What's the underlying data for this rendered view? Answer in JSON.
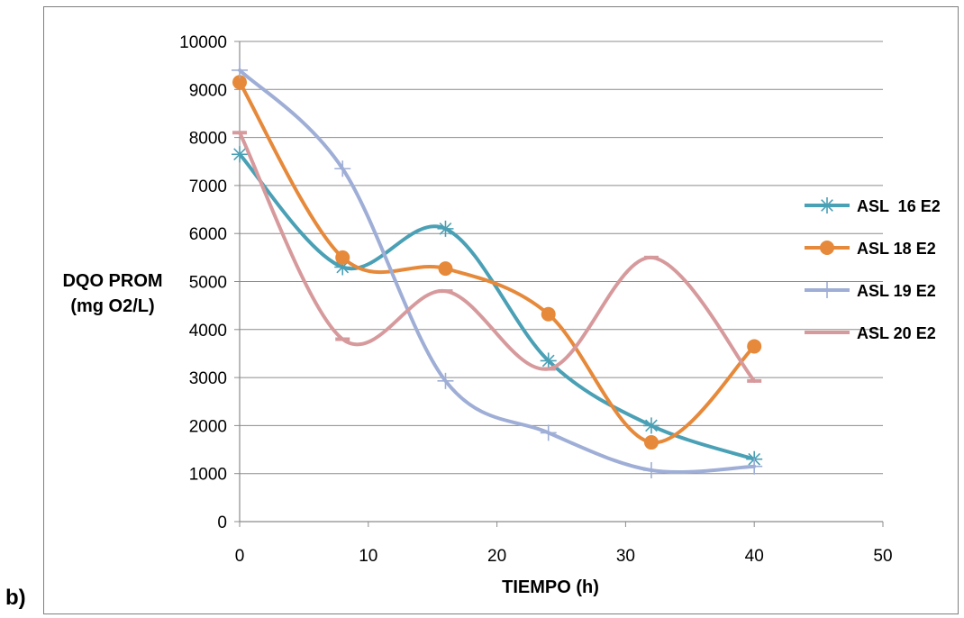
{
  "panel_label": "b)",
  "chart_data": {
    "type": "line",
    "title": "",
    "xlabel": "TIEMPO (h)",
    "ylabel": [
      "DQO PROM",
      "(mg O2/L)"
    ],
    "xlim": [
      0,
      50
    ],
    "ylim": [
      0,
      10000
    ],
    "xticks": [
      0,
      10,
      20,
      30,
      40,
      50
    ],
    "yticks": [
      0,
      1000,
      2000,
      3000,
      4000,
      5000,
      6000,
      7000,
      8000,
      9000,
      10000
    ],
    "grid": "horizontal",
    "smooth": true,
    "legend_position": "right",
    "series": [
      {
        "name": "ASL  16 E2",
        "color": "#4aa0b5",
        "marker": "asterisk",
        "x": [
          0,
          8,
          16,
          24,
          32,
          40
        ],
        "values": [
          7650,
          5300,
          6100,
          3350,
          2000,
          1300
        ]
      },
      {
        "name": "ASL 18 E2",
        "color": "#e6893a",
        "marker": "circle",
        "x": [
          0,
          8,
          16,
          24,
          32,
          40
        ],
        "values": [
          9150,
          5500,
          5270,
          4320,
          1650,
          3650
        ]
      },
      {
        "name": "ASL 19 E2",
        "color": "#9faed6",
        "marker": "plus",
        "x": [
          0,
          8,
          16,
          24,
          32,
          40
        ],
        "values": [
          9400,
          7350,
          2930,
          1850,
          1070,
          1150
        ]
      },
      {
        "name": "ASL 20 E2",
        "color": "#d79a9c",
        "marker": "dash",
        "x": [
          0,
          8,
          16,
          24,
          32,
          40
        ],
        "values": [
          8100,
          3800,
          4800,
          3180,
          5500,
          2930
        ]
      }
    ]
  }
}
